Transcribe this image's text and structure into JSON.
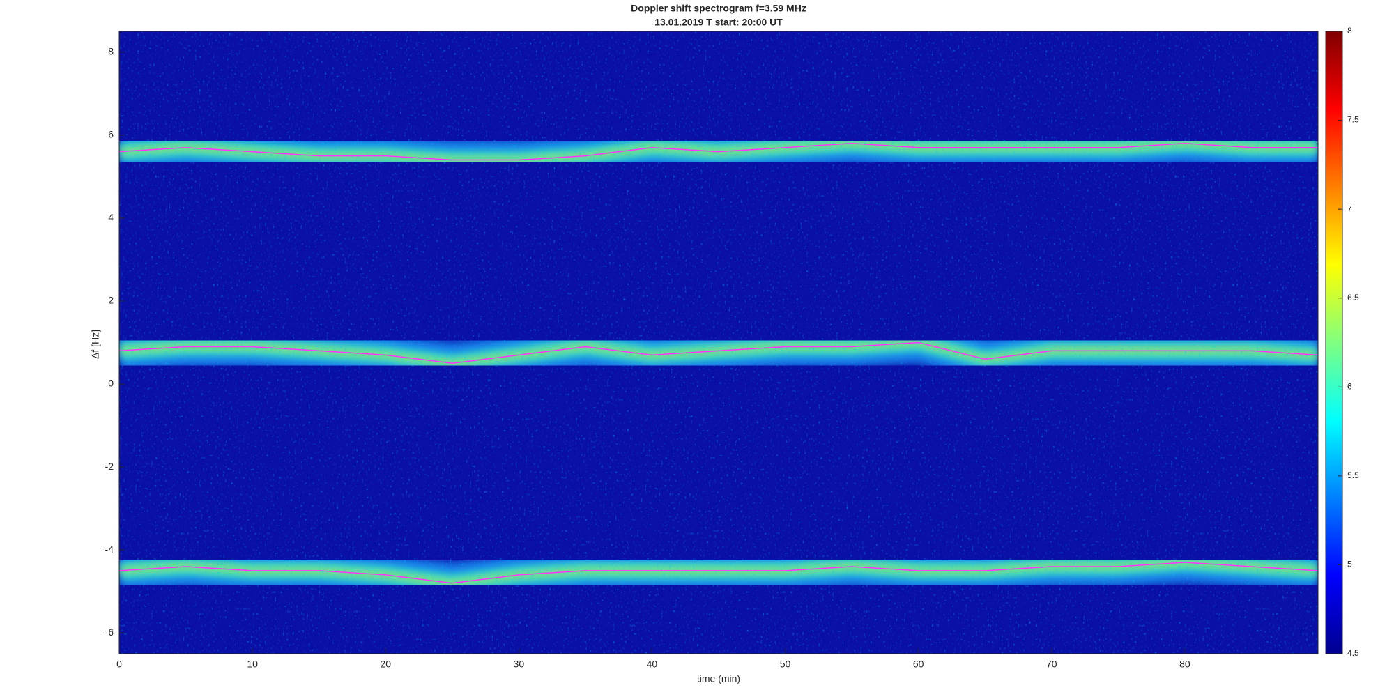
{
  "chart_data": {
    "type": "spectrogram",
    "title": "Doppler shift spectrogram f=3.59 MHz",
    "subtitle": "13.01.2019   T start: 20:00 UT",
    "x_label": "time (min)",
    "y_label": "Δf [Hz]",
    "x": [
      0,
      5,
      10,
      15,
      20,
      25,
      30,
      35,
      40,
      45,
      50,
      55,
      60,
      65,
      70,
      75,
      80,
      85,
      90
    ],
    "series": [
      {
        "color": "#ff33ff",
        "values": [
          5.6,
          5.7,
          5.6,
          5.5,
          5.5,
          5.4,
          5.4,
          5.5,
          5.7,
          5.6,
          5.7,
          5.8,
          5.7,
          5.7,
          5.7,
          5.7,
          5.8,
          5.7,
          5.7
        ]
      },
      {
        "color": "#ff33ff",
        "values": [
          0.8,
          0.9,
          0.9,
          0.8,
          0.7,
          0.5,
          0.7,
          0.9,
          0.7,
          0.8,
          0.9,
          0.9,
          1.0,
          0.6,
          0.8,
          0.8,
          0.8,
          0.8,
          0.7
        ]
      },
      {
        "color": "#ff33ff",
        "values": [
          -4.5,
          -4.4,
          -4.5,
          -4.5,
          -4.6,
          -4.8,
          -4.6,
          -4.5,
          -4.5,
          -4.5,
          -4.5,
          -4.4,
          -4.5,
          -4.5,
          -4.4,
          -4.4,
          -4.3,
          -4.4,
          -4.5
        ]
      }
    ],
    "xlim": [
      0,
      90
    ],
    "xticks": [
      0,
      10,
      20,
      30,
      40,
      50,
      60,
      70,
      80
    ],
    "ylim": [
      -6.5,
      8.5
    ],
    "yticks": [
      -6,
      -4,
      -2,
      0,
      2,
      4,
      6,
      8
    ],
    "clim": [
      4.5,
      8
    ],
    "cticks": [
      4.5,
      5,
      5.5,
      6,
      6.5,
      7,
      7.5,
      8
    ],
    "colormap": "jet"
  }
}
